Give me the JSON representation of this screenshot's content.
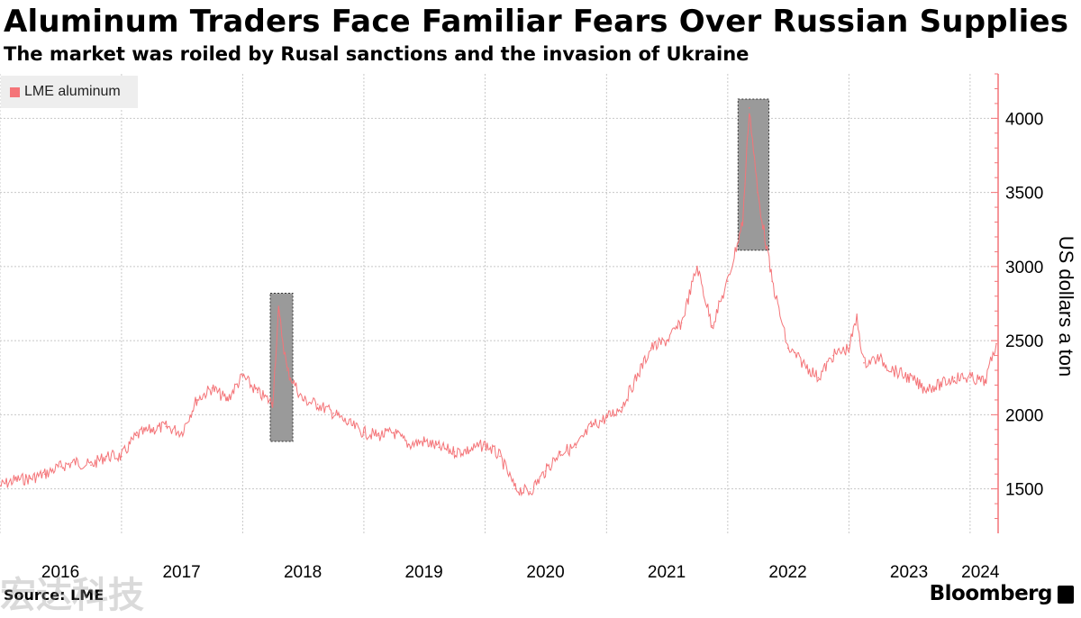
{
  "header": {
    "title": "Aluminum Traders Face Familiar Fears Over Russian Supplies",
    "subtitle": "The market was roiled by Rusal sanctions and the invasion of Ukraine"
  },
  "footer": {
    "source": "Source: LME",
    "brand": "Bloomberg",
    "watermark": "宏达科技"
  },
  "colors": {
    "series": "#f47478",
    "highlight_fill": "#9a9a9a",
    "axis": "#f47478",
    "grid": "#c8c8c8"
  },
  "chart_data": {
    "type": "line",
    "title": "Aluminum Traders Face Familiar Fears Over Russian Supplies",
    "subtitle": "The market was roiled by Rusal sanctions and the invasion of Ukraine",
    "xlabel": "",
    "ylabel": "US dollars a ton",
    "ylim": [
      1200,
      4300
    ],
    "xlim": [
      "2016-01-01",
      "2024-03-20"
    ],
    "y_ticks": [
      1500,
      2000,
      2500,
      3000,
      3500,
      4000
    ],
    "x_tick_labels": [
      "2016",
      "2017",
      "2018",
      "2019",
      "2020",
      "2021",
      "2022",
      "2023",
      "2024"
    ],
    "x_tick_dates": [
      "2016-07-01",
      "2017-07-01",
      "2018-07-01",
      "2019-07-01",
      "2020-07-01",
      "2021-07-01",
      "2022-07-01",
      "2023-07-01",
      "2024-02-01"
    ],
    "grid": true,
    "legend_position": "top-left",
    "series": [
      {
        "name": "LME aluminum",
        "x": [
          "2016-01-01",
          "2016-02-15",
          "2016-04-01",
          "2016-05-15",
          "2016-07-01",
          "2016-08-15",
          "2016-10-01",
          "2016-11-15",
          "2017-01-01",
          "2017-02-15",
          "2017-04-01",
          "2017-05-15",
          "2017-07-01",
          "2017-08-15",
          "2017-10-01",
          "2017-11-15",
          "2018-01-01",
          "2018-02-15",
          "2018-04-01",
          "2018-04-19",
          "2018-05-15",
          "2018-07-01",
          "2018-08-15",
          "2018-10-01",
          "2018-11-15",
          "2019-01-01",
          "2019-02-15",
          "2019-04-01",
          "2019-05-15",
          "2019-07-01",
          "2019-08-15",
          "2019-10-01",
          "2019-11-15",
          "2020-01-01",
          "2020-02-15",
          "2020-04-01",
          "2020-05-15",
          "2020-07-01",
          "2020-08-15",
          "2020-10-01",
          "2020-11-15",
          "2021-01-01",
          "2021-02-15",
          "2021-04-01",
          "2021-05-15",
          "2021-07-01",
          "2021-08-15",
          "2021-10-01",
          "2021-11-15",
          "2022-01-01",
          "2022-02-15",
          "2022-03-07",
          "2022-04-01",
          "2022-05-15",
          "2022-07-01",
          "2022-08-15",
          "2022-10-01",
          "2022-11-15",
          "2023-01-01",
          "2023-01-25",
          "2023-02-15",
          "2023-04-01",
          "2023-05-15",
          "2023-07-01",
          "2023-08-15",
          "2023-10-01",
          "2023-11-15",
          "2024-01-01",
          "2024-02-15",
          "2024-03-20"
        ],
        "values": [
          1520,
          1560,
          1570,
          1600,
          1650,
          1680,
          1660,
          1720,
          1720,
          1860,
          1900,
          1920,
          1880,
          2100,
          2180,
          2100,
          2260,
          2150,
          2080,
          2700,
          2300,
          2100,
          2070,
          2010,
          1940,
          1880,
          1860,
          1880,
          1800,
          1820,
          1780,
          1750,
          1760,
          1800,
          1720,
          1500,
          1480,
          1620,
          1750,
          1780,
          1920,
          1980,
          2050,
          2250,
          2450,
          2500,
          2620,
          3000,
          2600,
          2900,
          3300,
          4070,
          3500,
          2900,
          2450,
          2350,
          2250,
          2400,
          2450,
          2650,
          2350,
          2380,
          2300,
          2250,
          2180,
          2200,
          2250,
          2250,
          2220,
          2480
        ]
      }
    ],
    "highlight_windows": [
      {
        "x": [
          "2018-03-25",
          "2018-06-01"
        ],
        "y": [
          1820,
          2820
        ]
      },
      {
        "x": [
          "2022-02-01",
          "2022-05-05"
        ],
        "y": [
          3110,
          4130
        ]
      }
    ]
  }
}
